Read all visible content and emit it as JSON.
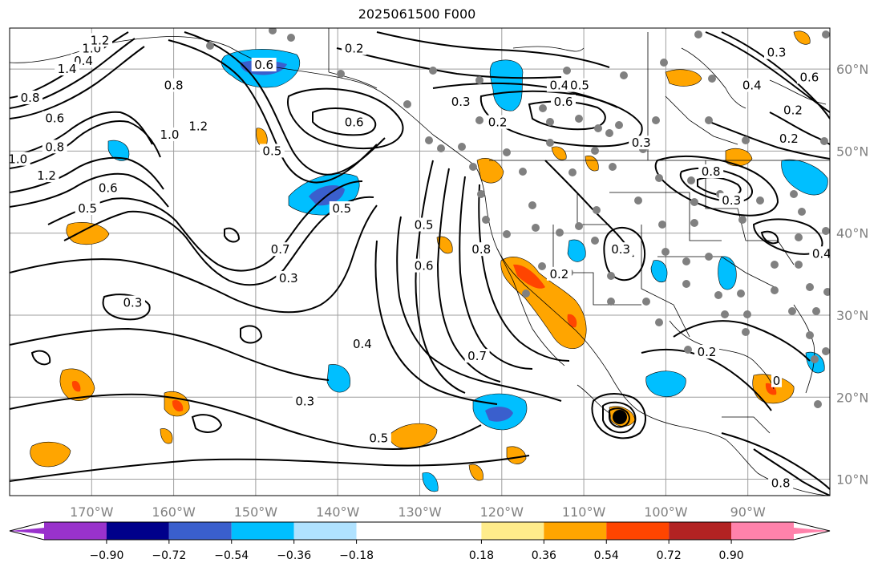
{
  "title": "2025061500 F000",
  "map": {
    "lon_range": [
      -180,
      -80
    ],
    "lat_range": [
      8,
      65
    ],
    "lon_ticks": [
      {
        "value": -170,
        "label": "170°W"
      },
      {
        "value": -160,
        "label": "160°W"
      },
      {
        "value": -150,
        "label": "150°W"
      },
      {
        "value": -140,
        "label": "140°W"
      },
      {
        "value": -130,
        "label": "130°W"
      },
      {
        "value": -120,
        "label": "120°W"
      },
      {
        "value": -110,
        "label": "110°W"
      },
      {
        "value": -100,
        "label": "100°W"
      },
      {
        "value": -90,
        "label": "90°W"
      }
    ],
    "lat_ticks": [
      {
        "value": 60,
        "label": "60°N"
      },
      {
        "value": 50,
        "label": "50°N"
      },
      {
        "value": 40,
        "label": "40°N"
      },
      {
        "value": 30,
        "label": "30°N"
      },
      {
        "value": 20,
        "label": "20°N"
      },
      {
        "value": 10,
        "label": "10°N"
      }
    ],
    "grid": true,
    "contour_labels": [
      {
        "text": "0.2",
        "lon": -138,
        "lat": 62.5
      },
      {
        "text": "0.6",
        "lon": -149,
        "lat": 60.5
      },
      {
        "text": "0.4",
        "lon": -171,
        "lat": 61
      },
      {
        "text": "1.4",
        "lon": -173,
        "lat": 60
      },
      {
        "text": "1.0",
        "lon": -170,
        "lat": 62.5
      },
      {
        "text": "1.2",
        "lon": -169,
        "lat": 63.5
      },
      {
        "text": "0.8",
        "lon": -177.5,
        "lat": 56.5
      },
      {
        "text": "0.6",
        "lon": -174.5,
        "lat": 54
      },
      {
        "text": "0.8",
        "lon": -174.5,
        "lat": 50.5
      },
      {
        "text": "1.0",
        "lon": -179,
        "lat": 49
      },
      {
        "text": "1.2",
        "lon": -175.5,
        "lat": 47
      },
      {
        "text": "0.8",
        "lon": -160,
        "lat": 58
      },
      {
        "text": "1.0",
        "lon": -160.5,
        "lat": 52
      },
      {
        "text": "1.2",
        "lon": -157,
        "lat": 53
      },
      {
        "text": "0.6",
        "lon": -168,
        "lat": 45.5
      },
      {
        "text": "0.5",
        "lon": -170.5,
        "lat": 43
      },
      {
        "text": "0.5",
        "lon": -148,
        "lat": 50
      },
      {
        "text": "0.6",
        "lon": -138,
        "lat": 53.5
      },
      {
        "text": "0.7",
        "lon": -147,
        "lat": 38
      },
      {
        "text": "0.5",
        "lon": -139.5,
        "lat": 43
      },
      {
        "text": "0.3",
        "lon": -146,
        "lat": 34.5
      },
      {
        "text": "0.3",
        "lon": -165,
        "lat": 31.5
      },
      {
        "text": "0.4",
        "lon": -137,
        "lat": 26.5
      },
      {
        "text": "0.3",
        "lon": -144,
        "lat": 19.5
      },
      {
        "text": "0.5",
        "lon": -135,
        "lat": 15
      },
      {
        "text": "0.5",
        "lon": -129.5,
        "lat": 41
      },
      {
        "text": "0.6",
        "lon": -129.5,
        "lat": 36
      },
      {
        "text": "0.7",
        "lon": -123,
        "lat": 25
      },
      {
        "text": "0.8",
        "lon": -122.5,
        "lat": 38
      },
      {
        "text": "0.3",
        "lon": -125,
        "lat": 56
      },
      {
        "text": "0.2",
        "lon": -120.5,
        "lat": 53.5
      },
      {
        "text": "0.4",
        "lon": -113,
        "lat": 58
      },
      {
        "text": "0.5",
        "lon": -110.5,
        "lat": 58
      },
      {
        "text": "0.6",
        "lon": -112.5,
        "lat": 56
      },
      {
        "text": "0.3",
        "lon": -103,
        "lat": 51
      },
      {
        "text": "0.8",
        "lon": -94.5,
        "lat": 47.5
      },
      {
        "text": "0.3",
        "lon": -92,
        "lat": 44
      },
      {
        "text": "0.3",
        "lon": -105.5,
        "lat": 38
      },
      {
        "text": "0.2",
        "lon": -113,
        "lat": 35
      },
      {
        "text": "0.2",
        "lon": -95,
        "lat": 25.5
      },
      {
        "text": "0",
        "lon": -86.5,
        "lat": 22
      },
      {
        "text": "0.8",
        "lon": -86,
        "lat": 9.5
      },
      {
        "text": "0.3",
        "lon": -86.5,
        "lat": 62
      },
      {
        "text": "0.4",
        "lon": -89.5,
        "lat": 58
      },
      {
        "text": "0.6",
        "lon": -82.5,
        "lat": 59
      },
      {
        "text": "0.2",
        "lon": -84.5,
        "lat": 55
      },
      {
        "text": "0.2",
        "lon": -85,
        "lat": 51.5
      },
      {
        "text": "0.4",
        "lon": -81,
        "lat": 37.5
      }
    ]
  },
  "colorbar": {
    "ticks": [
      "−0.90",
      "−0.72",
      "−0.54",
      "−0.36",
      "−0.18",
      "0.18",
      "0.36",
      "0.54",
      "0.72",
      "0.90"
    ],
    "colors": [
      "#9932cc",
      "#00008b",
      "#3a5fcd",
      "#00bfff",
      "#b0e2ff",
      "#ffffff",
      "#ffec8b",
      "#ffa500",
      "#ff4500",
      "#b22222",
      "#ff82ab"
    ],
    "range": [
      -1.08,
      1.08
    ]
  }
}
